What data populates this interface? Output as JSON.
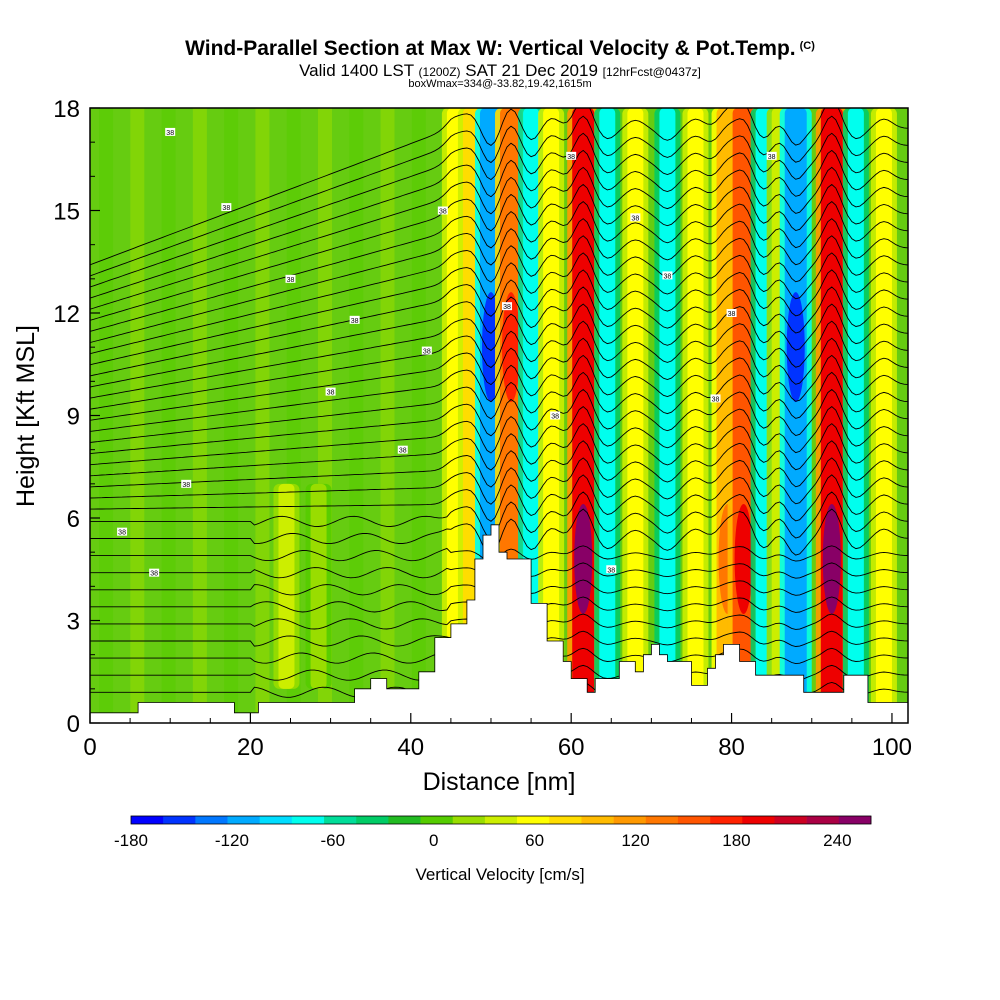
{
  "header": {
    "title": "Wind-Parallel Section at Max W: Vertical Velocity & Pot.Temp.",
    "copyright": "(C)",
    "valid_prefix": "Valid 1400 LST",
    "valid_utc": "(1200Z)",
    "valid_date": "SAT 21 Dec 2019",
    "forecast_info": "[12hrFcst@0437z]",
    "box_info": "boxWmax=334@-33.82,19.42,1615m"
  },
  "chart_data": {
    "type": "heatmap",
    "title": "Wind-Parallel Section at Max W: Vertical Velocity & Pot.Temp.",
    "xlabel": "Distance [nm]",
    "ylabel": "Height [Kft MSL]",
    "xlim": [
      0,
      102
    ],
    "ylim": [
      0,
      18
    ],
    "xticks": [
      0,
      20,
      40,
      60,
      80,
      100
    ],
    "yticks": [
      0,
      3,
      6,
      9,
      12,
      15,
      18
    ],
    "colorbar": {
      "label": "Vertical Velocity [cm/s]",
      "ticks": [
        -180,
        -120,
        -60,
        0,
        60,
        120,
        180,
        240
      ],
      "range": [
        -180,
        260
      ],
      "colors": [
        "#0000ff",
        "#0033ff",
        "#0077ff",
        "#00aaff",
        "#00ddff",
        "#00ffee",
        "#00dd99",
        "#00cc66",
        "#22bb22",
        "#55cc00",
        "#99dd00",
        "#ccee00",
        "#ffff00",
        "#ffdd00",
        "#ffbb00",
        "#ff9900",
        "#ff7700",
        "#ff5500",
        "#ff2200",
        "#ee0000",
        "#cc0022",
        "#aa0044",
        "#880066"
      ]
    },
    "velocity_bands": [
      {
        "x": 24.5,
        "w": 60
      },
      {
        "x": 28.5,
        "w": 20
      },
      {
        "x": 45.5,
        "w": 80
      },
      {
        "x": 47.5,
        "w": 110
      },
      {
        "x": 50,
        "w": -160
      },
      {
        "x": 52.5,
        "w": 180
      },
      {
        "x": 55,
        "w": -110
      },
      {
        "x": 57.5,
        "w": 90
      },
      {
        "x": 61.5,
        "w": 250
      },
      {
        "x": 64.5,
        "w": -90
      },
      {
        "x": 68,
        "w": 70
      },
      {
        "x": 72,
        "w": -100
      },
      {
        "x": 75.5,
        "w": 80
      },
      {
        "x": 79.5,
        "w": 140
      },
      {
        "x": 81.5,
        "w": 200
      },
      {
        "x": 84,
        "w": -100
      },
      {
        "x": 86,
        "w": 60
      },
      {
        "x": 88,
        "w": -150
      },
      {
        "x": 92.5,
        "w": 250
      },
      {
        "x": 95.5,
        "w": -90
      },
      {
        "x": 99,
        "w": 80
      }
    ],
    "terrain": [
      [
        0,
        0.3
      ],
      [
        6,
        0.3
      ],
      [
        6,
        0.6
      ],
      [
        18,
        0.6
      ],
      [
        18,
        0.3
      ],
      [
        21,
        0.3
      ],
      [
        21,
        0.6
      ],
      [
        33,
        0.6
      ],
      [
        33,
        1.0
      ],
      [
        35,
        1.0
      ],
      [
        35,
        1.3
      ],
      [
        37,
        1.3
      ],
      [
        37,
        1.0
      ],
      [
        41,
        1.0
      ],
      [
        41,
        1.5
      ],
      [
        43,
        1.5
      ],
      [
        43,
        2.5
      ],
      [
        45,
        2.5
      ],
      [
        45,
        2.9
      ],
      [
        47,
        2.9
      ],
      [
        47,
        3.6
      ],
      [
        48,
        3.6
      ],
      [
        48,
        4.8
      ],
      [
        49,
        4.8
      ],
      [
        49,
        5.5
      ],
      [
        50,
        5.5
      ],
      [
        50,
        5.8
      ],
      [
        51,
        5.8
      ],
      [
        51,
        5.0
      ],
      [
        52,
        5.0
      ],
      [
        52,
        4.8
      ],
      [
        55,
        4.8
      ],
      [
        55,
        3.5
      ],
      [
        57,
        3.5
      ],
      [
        57,
        2.4
      ],
      [
        59,
        2.4
      ],
      [
        59,
        1.8
      ],
      [
        60,
        1.8
      ],
      [
        60,
        1.3
      ],
      [
        62,
        1.3
      ],
      [
        62,
        0.9
      ],
      [
        63,
        0.9
      ],
      [
        63,
        1.3
      ],
      [
        66,
        1.3
      ],
      [
        66,
        1.8
      ],
      [
        68,
        1.8
      ],
      [
        68,
        1.5
      ],
      [
        69,
        1.5
      ],
      [
        69,
        2.0
      ],
      [
        70,
        2.0
      ],
      [
        70,
        2.3
      ],
      [
        71,
        2.3
      ],
      [
        71,
        2.0
      ],
      [
        72,
        2.0
      ],
      [
        72,
        1.8
      ],
      [
        75,
        1.8
      ],
      [
        75,
        1.1
      ],
      [
        77,
        1.1
      ],
      [
        77,
        1.6
      ],
      [
        78,
        1.6
      ],
      [
        78,
        2.0
      ],
      [
        79,
        2.0
      ],
      [
        79,
        2.3
      ],
      [
        81,
        2.3
      ],
      [
        81,
        1.8
      ],
      [
        83,
        1.8
      ],
      [
        83,
        1.4
      ],
      [
        89,
        1.4
      ],
      [
        89,
        0.9
      ],
      [
        94,
        0.9
      ],
      [
        94,
        1.4
      ],
      [
        97,
        1.4
      ],
      [
        97,
        0.6
      ],
      [
        102,
        0.6
      ]
    ],
    "theta_label": "38"
  }
}
